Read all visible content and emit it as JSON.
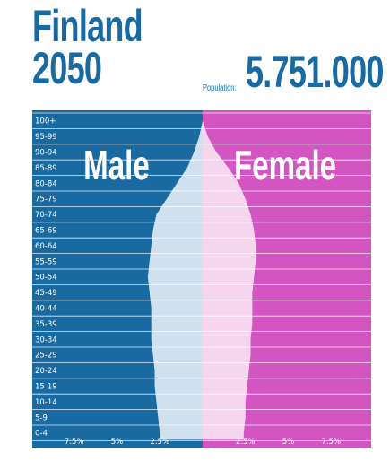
{
  "title_line1": "Finland",
  "title_line2": "2050",
  "population_label": "Population:",
  "population_value": "5.751.000",
  "male_label": "Male",
  "female_label": "Female",
  "colors": {
    "male_bg": "#1a6aa2",
    "female_bg": "#d255c2",
    "male_fill": "#cfe0ee",
    "female_fill": "#f6d6ef",
    "title": "#1a6aa2"
  },
  "chart_data": {
    "type": "bar",
    "orientation": "horizontal-pyramid",
    "unit": "%",
    "categories": [
      "0-4",
      "5-9",
      "10-14",
      "15-19",
      "20-24",
      "25-29",
      "30-34",
      "35-39",
      "40-44",
      "45-49",
      "50-54",
      "55-59",
      "60-64",
      "65-69",
      "70-74",
      "75-79",
      "80-84",
      "85-89",
      "90-94",
      "95-99",
      "100+"
    ],
    "series": [
      {
        "name": "Male",
        "values": [
          2.5,
          2.6,
          2.7,
          2.8,
          2.8,
          2.9,
          3.0,
          3.0,
          3.0,
          3.1,
          3.2,
          3.1,
          3.0,
          2.9,
          2.7,
          2.1,
          1.5,
          0.9,
          0.5,
          0.2,
          0.0
        ]
      },
      {
        "name": "Female",
        "values": [
          2.4,
          2.5,
          2.5,
          2.6,
          2.7,
          2.8,
          2.8,
          2.9,
          2.9,
          2.9,
          3.0,
          3.1,
          3.1,
          3.0,
          2.8,
          2.5,
          2.1,
          1.5,
          0.8,
          0.3,
          0.0
        ]
      }
    ],
    "xlim": [
      -10,
      10
    ],
    "x_ticks": [
      {
        "value": -7.5,
        "label": "7.5%"
      },
      {
        "value": -5,
        "label": "5%"
      },
      {
        "value": -2.5,
        "label": "2.5%"
      },
      {
        "value": 2.5,
        "label": "2.5%"
      },
      {
        "value": 5,
        "label": "5%"
      },
      {
        "value": 7.5,
        "label": "7.5%"
      }
    ]
  }
}
